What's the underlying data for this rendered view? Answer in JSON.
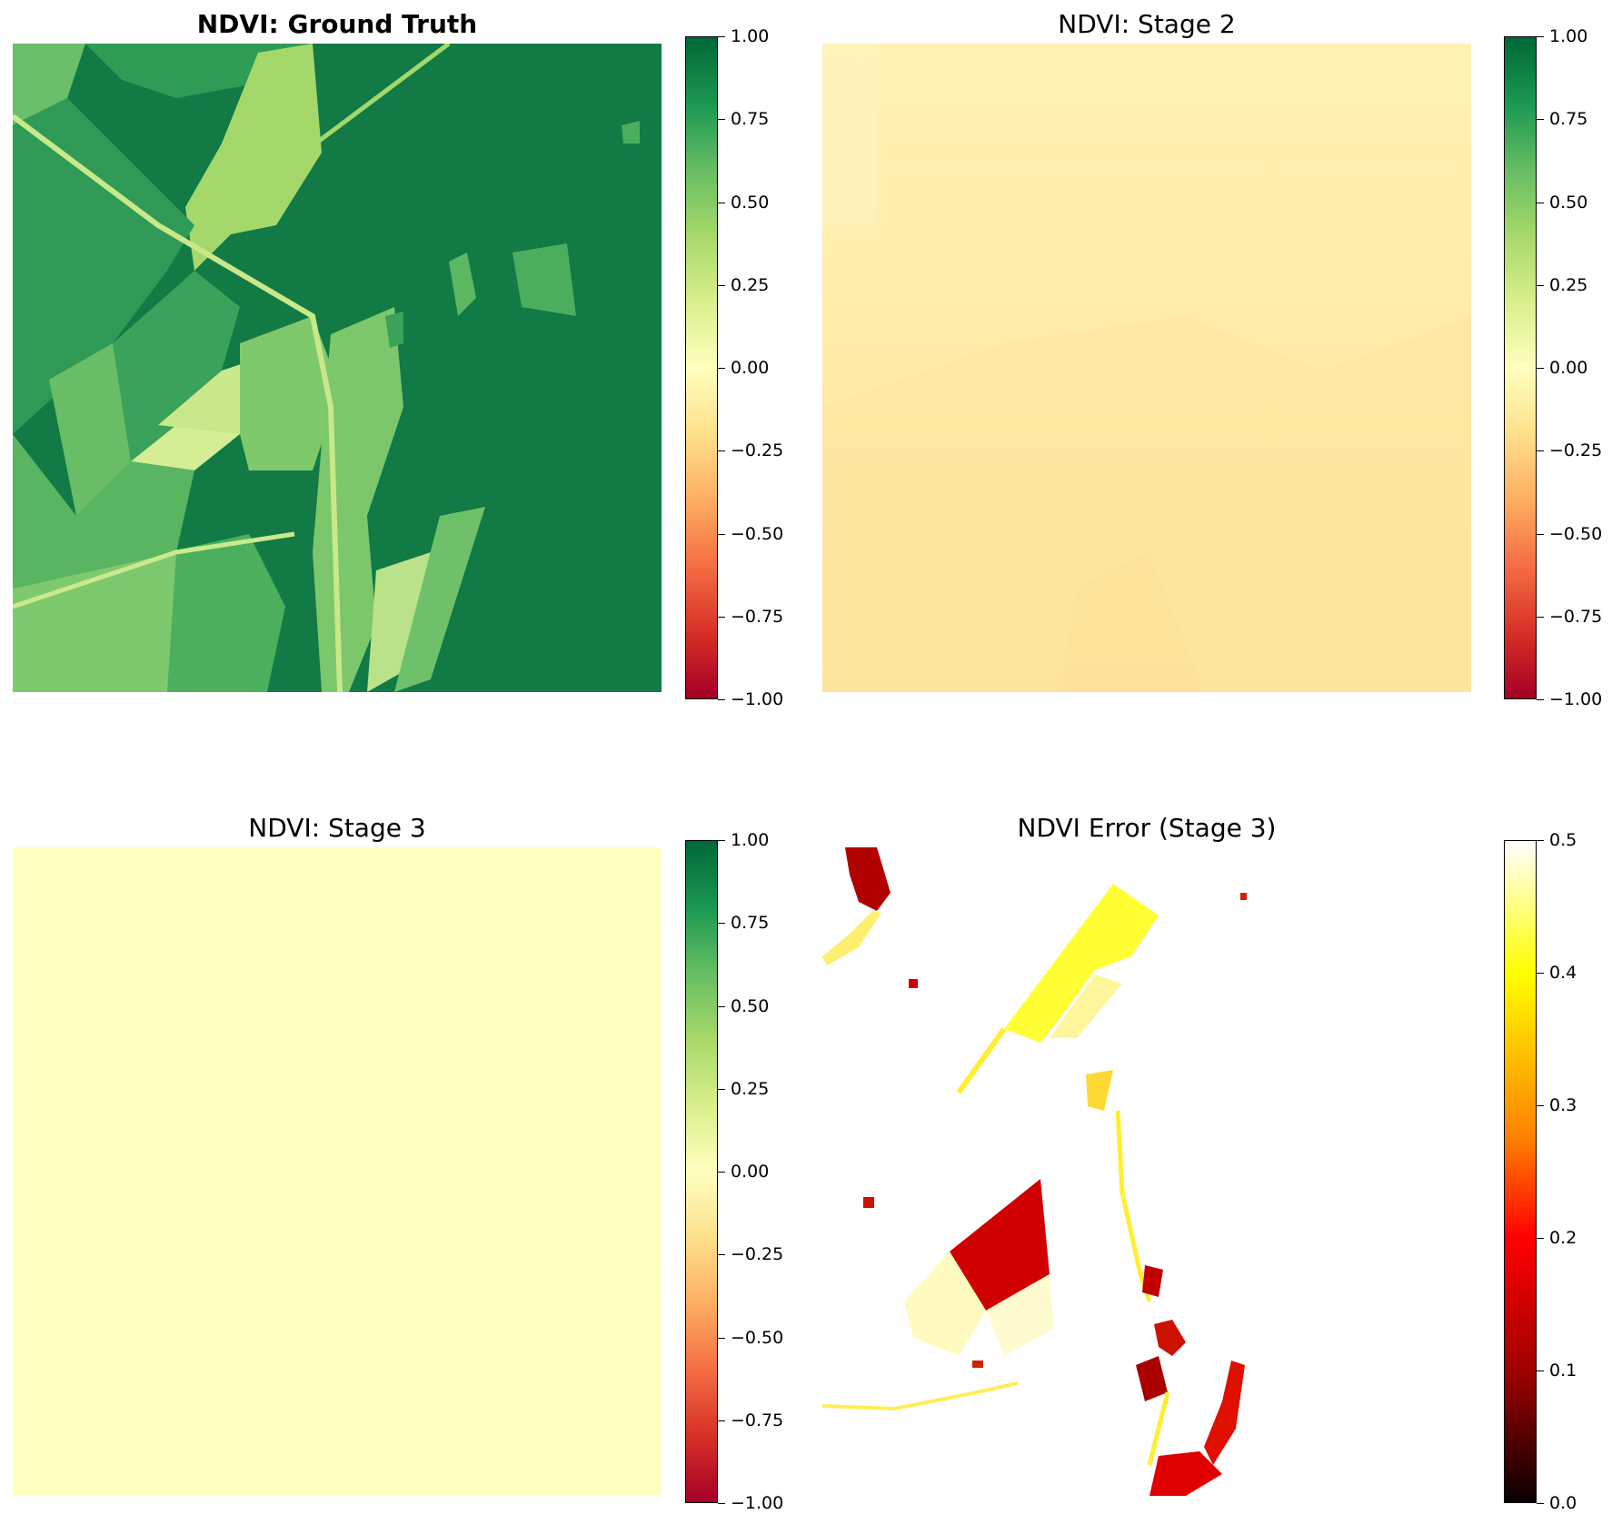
{
  "colors": {
    "rdylgn": [
      "#a50026",
      "#d73027",
      "#f46d43",
      "#fdae61",
      "#fee08b",
      "#ffffbf",
      "#d9ef8b",
      "#a6d96a",
      "#66bd63",
      "#1a9850",
      "#006837"
    ],
    "hot": [
      "#0a0000",
      "#ff0000",
      "#ffff00",
      "#ffffff"
    ]
  },
  "chart_data": [
    {
      "type": "heatmap",
      "title": "NDVI: Ground Truth",
      "colormap": "RdYlGn",
      "clim": [
        -1,
        1
      ],
      "colorbar_ticks": [
        "1.00",
        "0.75",
        "0.50",
        "0.25",
        "0.00",
        "−0.25",
        "−0.50",
        "−0.75",
        "−1.00"
      ],
      "description_values": {
        "dominant_ndvi": 0.85,
        "field_ndvi_range": [
          0.2,
          0.6
        ]
      }
    },
    {
      "type": "heatmap",
      "title": "NDVI: Stage 2",
      "colormap": "RdYlGn",
      "clim": [
        -1,
        1
      ],
      "colorbar_ticks": [
        "1.00",
        "0.75",
        "0.50",
        "0.25",
        "0.00",
        "−0.25",
        "−0.50",
        "−0.75",
        "−1.00"
      ],
      "description_values": {
        "ndvi_range": [
          -0.15,
          -0.03
        ]
      }
    },
    {
      "type": "heatmap",
      "title": "NDVI: Stage 3",
      "colormap": "RdYlGn",
      "clim": [
        -1,
        1
      ],
      "colorbar_ticks": [
        "1.00",
        "0.75",
        "0.50",
        "0.25",
        "0.00",
        "−0.25",
        "−0.50",
        "−0.75",
        "−1.00"
      ],
      "description_values": {
        "uniform_ndvi": 0.0
      }
    },
    {
      "type": "heatmap",
      "title": "NDVI Error (Stage 3)",
      "colormap": "hot",
      "clim": [
        0,
        0.5
      ],
      "colorbar_ticks": [
        "0.5",
        "0.4",
        "0.3",
        "0.2",
        "0.1",
        "0.0"
      ],
      "description_values": {
        "background_error": 0.5,
        "min_error_regions": 0.1
      }
    }
  ]
}
